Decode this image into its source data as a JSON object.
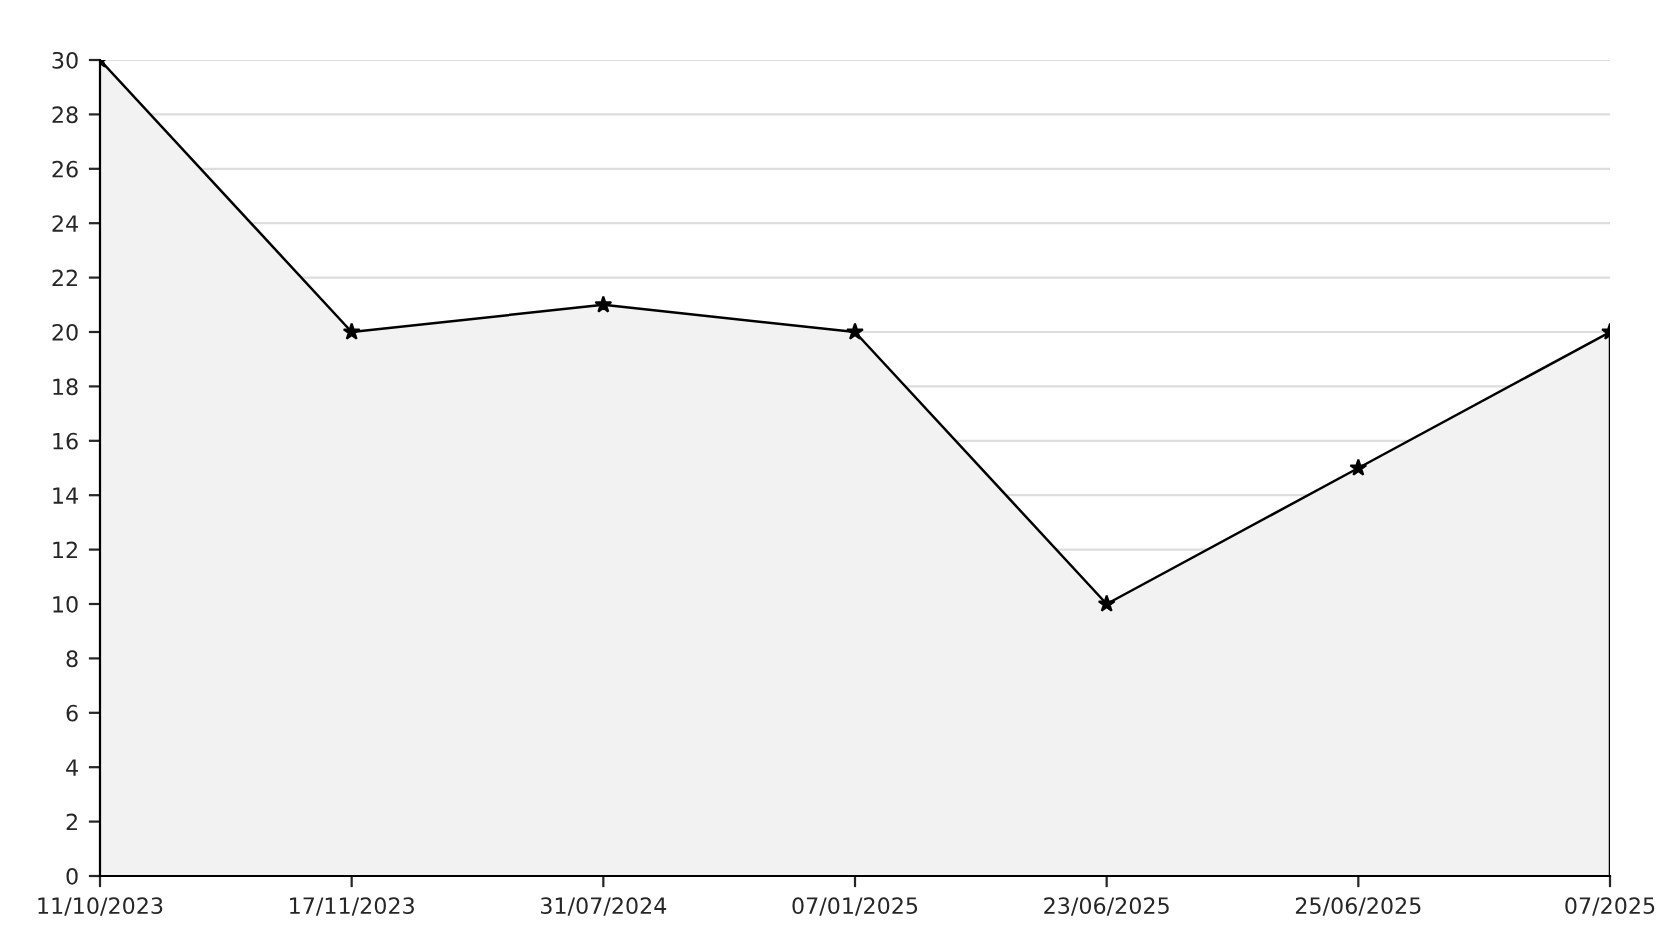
{
  "chart_data": {
    "type": "area",
    "categories": [
      "11/10/2023",
      "17/11/2023",
      "31/07/2024",
      "07/01/2025",
      "23/06/2025",
      "25/06/2025",
      "07/2025"
    ],
    "series": [
      {
        "color": "#000000",
        "values": [
          30,
          20,
          21,
          20,
          10,
          15,
          20
        ]
      }
    ],
    "ylim": [
      0,
      30
    ],
    "yticks": [
      0,
      2,
      4,
      6,
      8,
      10,
      12,
      14,
      16,
      18,
      20,
      22,
      24,
      26,
      28,
      30
    ],
    "grid": "y",
    "marker": "star",
    "line_style": "solid"
  }
}
